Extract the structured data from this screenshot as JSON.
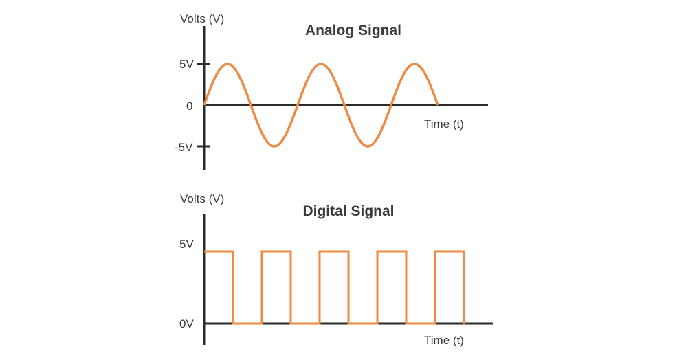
{
  "colors": {
    "signal": "#ef8a45",
    "axis": "#2b2b2b",
    "text": "#3a3a3a"
  },
  "chart_data": [
    {
      "type": "line",
      "title": "Analog Signal",
      "ylabel": "Volts (V)",
      "xlabel": "Time (t)",
      "yticks": [
        "5V",
        "0",
        "-5V"
      ],
      "ytick_values": [
        5,
        0,
        -5
      ],
      "ylim": [
        -5,
        5
      ],
      "series": [
        {
          "shape": "sine",
          "amplitude": 5,
          "cycles": 2.5,
          "values": [
            0,
            5,
            0,
            -5,
            0,
            5,
            0,
            -5,
            0,
            5,
            0
          ]
        }
      ]
    },
    {
      "type": "line",
      "title": "Digital Signal",
      "ylabel": "Volts (V)",
      "xlabel": "Time (t)",
      "yticks": [
        "5V",
        "0V"
      ],
      "ytick_values": [
        5,
        0
      ],
      "ylim": [
        0,
        5
      ],
      "series": [
        {
          "shape": "square",
          "values": [
            5,
            0,
            5,
            0,
            5,
            0,
            5,
            0,
            5
          ]
        }
      ]
    }
  ]
}
